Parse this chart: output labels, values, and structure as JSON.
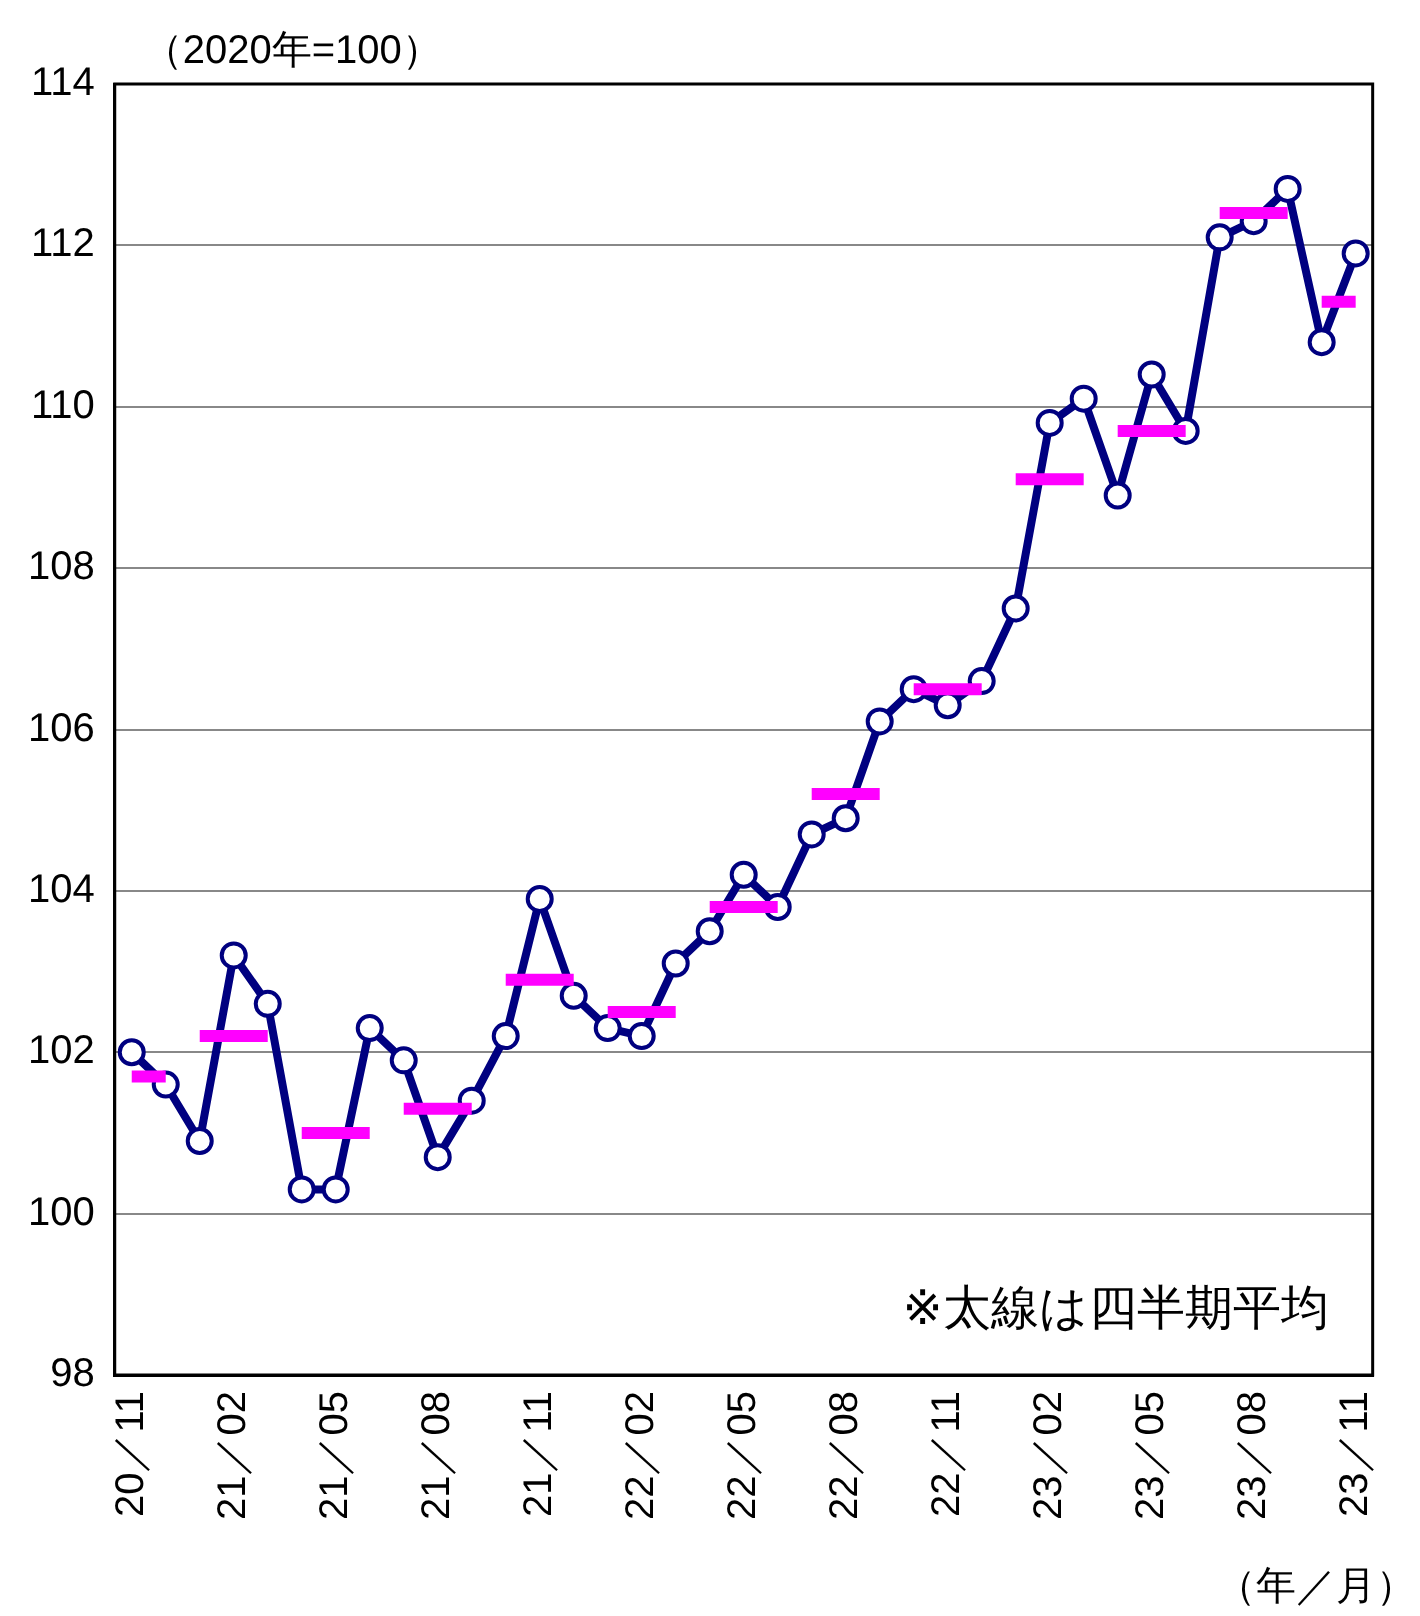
{
  "chart_data": {
    "type": "line",
    "ylabel": "（2020年=100）",
    "xlabel": "（年／月）",
    "annotations": [
      "※太線は四半期平均"
    ],
    "categories": [
      "20／11",
      null,
      null,
      "21／02",
      null,
      null,
      "21／05",
      null,
      null,
      "21／08",
      null,
      null,
      "21／11",
      null,
      null,
      "22／02",
      null,
      null,
      "22／05",
      null,
      null,
      "22／08",
      null,
      null,
      "22／11",
      null,
      null,
      "23／02",
      null,
      null,
      "23／05",
      null,
      null,
      "23／08",
      null,
      null,
      "23／11"
    ],
    "series": [
      {
        "color": "#000080",
        "marker": "circle",
        "values": [
          102.0,
          101.6,
          100.9,
          103.2,
          102.6,
          100.3,
          100.3,
          102.3,
          101.9,
          100.7,
          101.4,
          102.2,
          103.9,
          102.7,
          102.3,
          102.2,
          103.1,
          103.5,
          104.2,
          103.8,
          104.7,
          104.9,
          106.1,
          106.5,
          106.3,
          106.6,
          107.5,
          109.8,
          110.1,
          108.9,
          110.4,
          109.7,
          112.1,
          112.3,
          112.7,
          110.8,
          111.9
        ]
      },
      {
        "color": "#ff00ff",
        "marker": "none",
        "values": [
          101.7,
          101.7,
          null,
          null,
          null,
          101.0,
          101.0,
          101.0,
          null,
          null,
          null,
          102.9,
          102.9,
          102.9,
          null,
          null,
          null,
          103.8,
          103.8,
          103.8,
          null,
          null,
          null,
          106.5,
          106.5,
          106.5,
          null,
          null,
          null,
          109.7,
          109.7,
          109.7,
          null,
          null,
          null,
          111.3,
          111.3
        ]
      },
      {
        "color": "#ff00ff",
        "marker": "none",
        "values": [
          null,
          null,
          102.2,
          102.2,
          102.2,
          null,
          null,
          null,
          101.3,
          101.3,
          101.3,
          null,
          null,
          null,
          102.5,
          102.5,
          102.5,
          null,
          null,
          null,
          105.2,
          105.2,
          105.2,
          null,
          null,
          null,
          109.1,
          109.1,
          109.1,
          null,
          null,
          null,
          112.4,
          112.4,
          112.4,
          null,
          null
        ]
      }
    ],
    "ylim": [
      98,
      114
    ],
    "yticks": [
      98,
      100,
      102,
      104,
      106,
      108,
      110,
      112,
      114
    ],
    "grid": "y",
    "legend": false
  }
}
